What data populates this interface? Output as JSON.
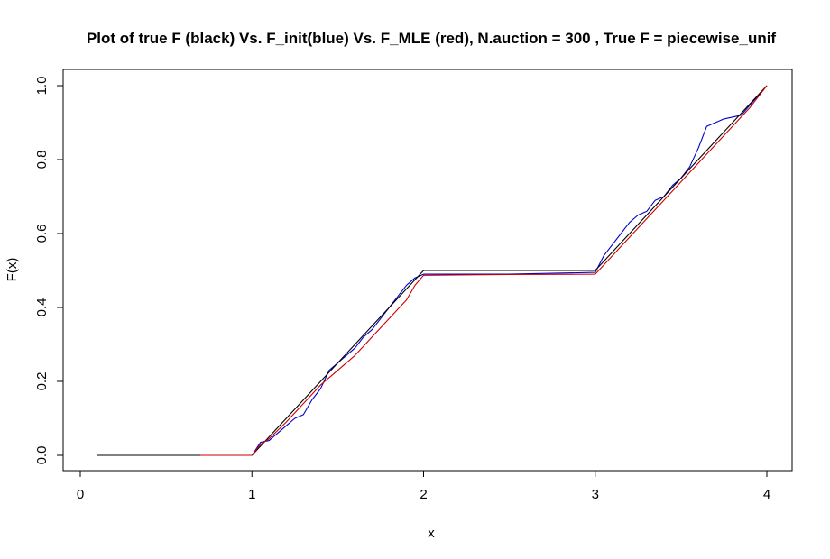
{
  "chart_data": {
    "type": "line",
    "title": "Plot of true F (black) Vs. F_init(blue) Vs. F_MLE (red), N.auction = 300 , True F = piecewise_unif",
    "xlabel": "x",
    "ylabel": "F(x)",
    "xlim": [
      0,
      4
    ],
    "ylim": [
      0,
      1
    ],
    "xticks": [
      "0",
      "1",
      "2",
      "3",
      "4"
    ],
    "yticks": [
      "0.0",
      "0.2",
      "0.4",
      "0.6",
      "0.8",
      "1.0"
    ],
    "grid": false,
    "legend": "none",
    "series": [
      {
        "color": "#000000",
        "x": [
          0.1,
          1.0,
          2.0,
          3.0,
          4.0
        ],
        "y": [
          0.0,
          0.0,
          0.5,
          0.5,
          1.0
        ]
      },
      {
        "color": "#0000cc",
        "x": [
          0.7,
          1.0,
          1.05,
          1.1,
          1.15,
          1.2,
          1.25,
          1.3,
          1.35,
          1.4,
          1.45,
          1.5,
          1.55,
          1.6,
          1.65,
          1.7,
          1.75,
          1.8,
          1.85,
          1.9,
          1.95,
          2.0,
          2.5,
          3.0,
          3.05,
          3.1,
          3.15,
          3.2,
          3.25,
          3.3,
          3.35,
          3.4,
          3.45,
          3.5,
          3.55,
          3.6,
          3.65,
          3.75,
          3.85,
          4.0
        ],
        "y": [
          0.0,
          0.0,
          0.035,
          0.04,
          0.06,
          0.08,
          0.1,
          0.11,
          0.15,
          0.18,
          0.23,
          0.25,
          0.27,
          0.29,
          0.32,
          0.34,
          0.37,
          0.4,
          0.43,
          0.46,
          0.48,
          0.49,
          0.49,
          0.495,
          0.54,
          0.57,
          0.6,
          0.63,
          0.65,
          0.66,
          0.69,
          0.7,
          0.73,
          0.75,
          0.78,
          0.83,
          0.89,
          0.91,
          0.92,
          1.0
        ]
      },
      {
        "color": "#cc0000",
        "x": [
          0.7,
          1.0,
          1.05,
          1.1,
          1.2,
          1.3,
          1.4,
          1.5,
          1.6,
          1.7,
          1.8,
          1.9,
          1.95,
          2.0,
          2.5,
          3.0,
          3.1,
          3.2,
          3.3,
          3.4,
          3.5,
          3.6,
          3.7,
          3.8,
          3.9,
          4.0
        ],
        "y": [
          0.0,
          0.0,
          0.03,
          0.045,
          0.09,
          0.14,
          0.19,
          0.23,
          0.27,
          0.32,
          0.37,
          0.42,
          0.46,
          0.487,
          0.489,
          0.49,
          0.54,
          0.59,
          0.64,
          0.69,
          0.74,
          0.79,
          0.84,
          0.89,
          0.94,
          1.0
        ]
      }
    ]
  }
}
